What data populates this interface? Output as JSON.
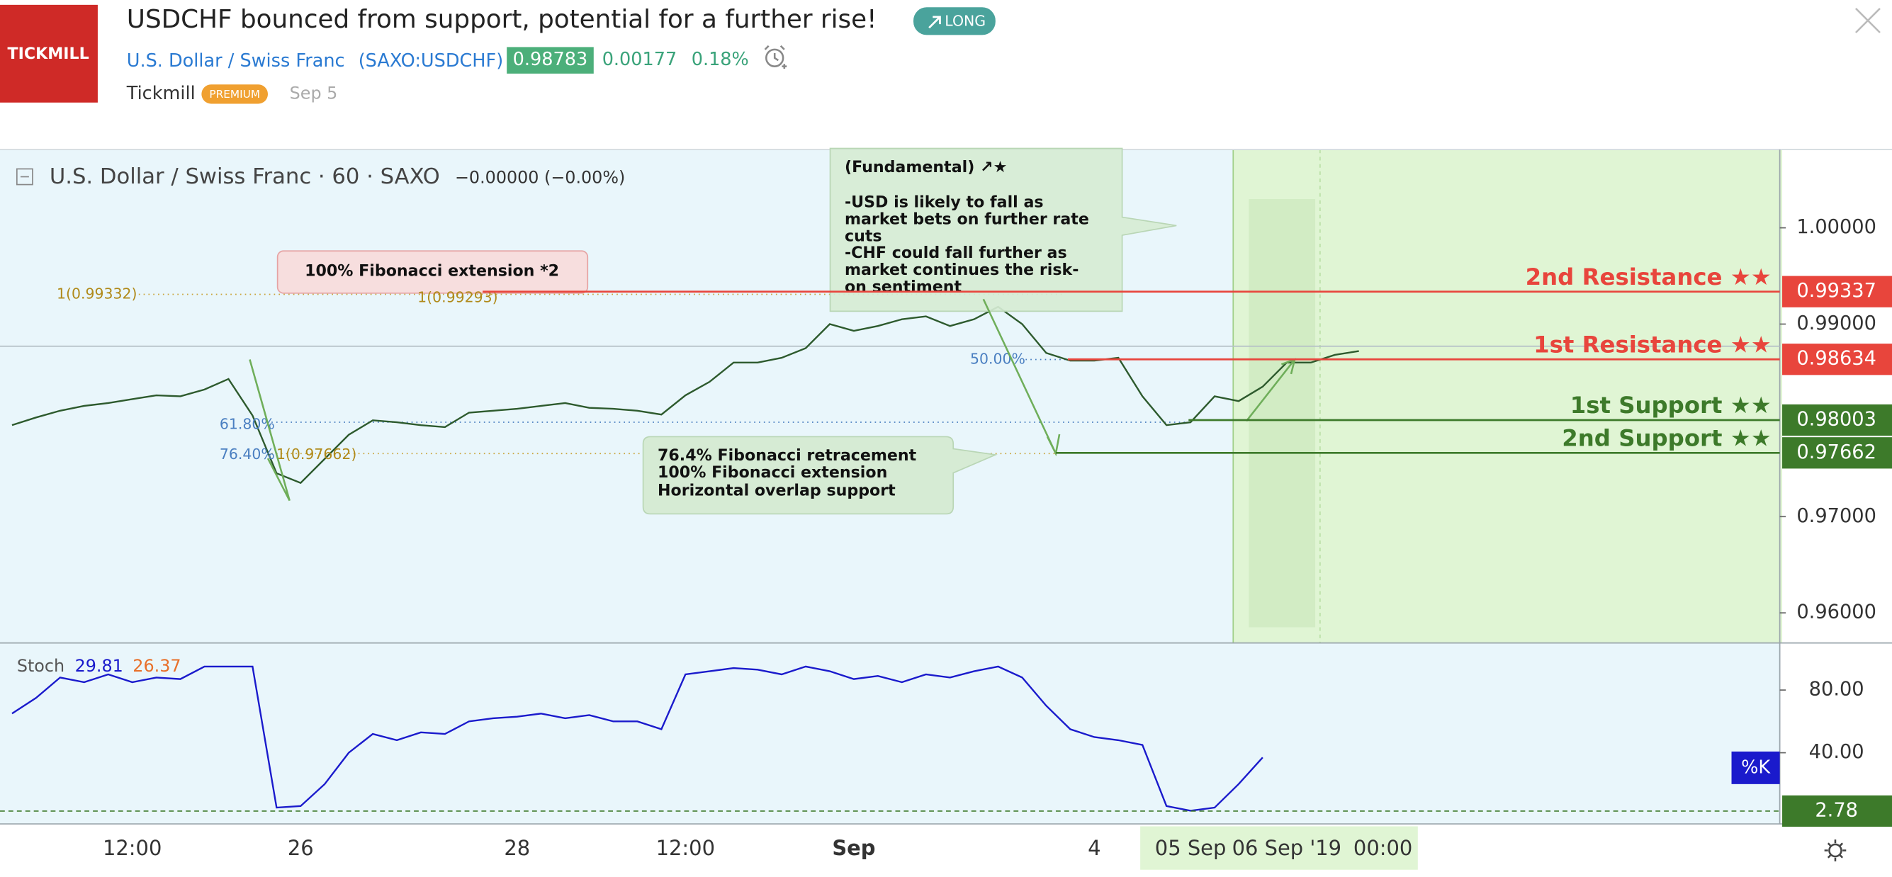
{
  "header": {
    "logo": "TICKMILL",
    "title": "USDCHF bounced from support, potential for a further rise!",
    "badge": "LONG",
    "symbol_name": "U.S. Dollar / Swiss Franc",
    "symbol_code": "(SAXO:USDCHF)",
    "price": "0.98783",
    "change": "0.00177",
    "change_pct": "0.18%",
    "author": "Tickmill",
    "author_badge": "PREMIUM",
    "date": "Sep 5"
  },
  "chart_data": [
    {
      "type": "line",
      "title": "U.S. Dollar / Swiss Franc · 60 · SAXO",
      "change": "−0.00000 (−0.00%)",
      "categories": [
        null,
        null,
        null,
        null,
        null,
        "12:00",
        null,
        null,
        null,
        null,
        null,
        null,
        "26",
        null,
        null,
        null,
        null,
        null,
        null,
        null,
        null,
        "28",
        null,
        null,
        null,
        null,
        null,
        null,
        "12:00",
        null,
        null,
        null,
        null,
        null,
        null,
        "Sep",
        null,
        null,
        null,
        null,
        null,
        null,
        null,
        null,
        null,
        "4",
        null,
        null,
        null,
        "05 Sep",
        null,
        null,
        null,
        "06 Sep '19",
        null,
        null,
        null,
        "00:00",
        null,
        null,
        null,
        null,
        null,
        null,
        null,
        null,
        null,
        null,
        null,
        null,
        null,
        null,
        null,
        null
      ],
      "values": [
        0.9795,
        0.9803,
        0.981,
        0.9815,
        0.9818,
        0.9822,
        0.9826,
        0.9825,
        0.9832,
        0.9843,
        0.9805,
        0.9745,
        0.9735,
        0.976,
        0.9785,
        0.98,
        0.9798,
        0.9795,
        0.9793,
        0.9808,
        0.981,
        0.9812,
        0.9815,
        0.9818,
        0.9813,
        0.9812,
        0.981,
        0.9806,
        0.9826,
        0.984,
        0.986,
        0.986,
        0.9865,
        0.9875,
        0.99,
        0.9893,
        0.9898,
        0.9905,
        0.9908,
        0.9898,
        0.9905,
        0.9918,
        0.99,
        0.987,
        0.9862,
        0.9862,
        0.9865,
        0.9825,
        0.9795,
        0.9798,
        0.9825,
        0.982,
        0.9835,
        0.986,
        0.986,
        0.9868,
        0.9872,
        null,
        null,
        null,
        null,
        null,
        null,
        null,
        null,
        null,
        null,
        null,
        null,
        null,
        null,
        null,
        null,
        null
      ],
      "color": "#2d5a2d",
      "ylim": [
        0.957,
        1.008
      ],
      "yticks": [
        {
          "value": 0.96,
          "label": "0.96000"
        },
        {
          "value": 0.97,
          "label": "0.97000"
        },
        {
          "value": 0.99,
          "label": "0.99000"
        },
        {
          "value": 1,
          "label": "1.00000"
        }
      ],
      "levels": [
        {
          "name": "2nd Resistance ★★",
          "value": 0.99337,
          "color": "#e8453c"
        },
        {
          "name": "1st Resistance ★★",
          "value": 0.98634,
          "color": "#e8453c"
        },
        {
          "name": "1st Support ★★",
          "value": 0.98003,
          "color": "#3d7a2a"
        },
        {
          "name": "2nd Support ★★",
          "value": 0.97662,
          "color": "#3d7a2a"
        }
      ],
      "annotations": {
        "fundamental": [
          "(Fundamental) ↗★",
          "-USD is likely to fall as",
          "market bets on further rate",
          "cuts",
          "-CHF could fall further as",
          "market continues the risk-",
          "on sentiment"
        ],
        "fib_extension": "100% Fibonacci extension *2",
        "support_note": [
          "76.4% Fibonacci retracement",
          "100% Fibonacci extension",
          "Horizontal overlap support"
        ],
        "fib_labels": [
          "1(0.99332)",
          "1(0.99293)",
          "50.00%",
          "61.80%",
          "76.40%",
          "1(0.97662)"
        ]
      }
    },
    {
      "type": "line",
      "title": "Stoch",
      "readouts": [
        29.81,
        26.37
      ],
      "readout_colors": [
        "#1a1acc",
        "#e8702a"
      ],
      "series_label": "%K",
      "values": [
        65,
        75,
        88,
        85,
        90,
        85,
        88,
        87,
        95,
        95,
        95,
        5,
        6,
        20,
        40,
        52,
        48,
        53,
        52,
        60,
        62,
        63,
        65,
        62,
        64,
        60,
        60,
        55,
        90,
        92,
        94,
        93,
        90,
        95,
        92,
        87,
        89,
        85,
        90,
        88,
        92,
        95,
        88,
        70,
        55,
        50,
        48,
        45,
        6,
        3,
        5,
        20,
        37,
        null,
        null,
        null,
        null,
        null,
        null,
        null,
        null,
        null,
        null,
        null,
        null,
        null,
        null,
        null,
        null,
        null,
        null,
        null,
        null,
        null
      ],
      "color": "#1a1acc",
      "ylim": [
        -5.4,
        108.5
      ],
      "yticks": [
        {
          "value": 40,
          "label": "40.00"
        },
        {
          "value": 80,
          "label": "80.00"
        }
      ],
      "level": {
        "value": 2.78,
        "color": "#3d7a2a"
      }
    }
  ]
}
